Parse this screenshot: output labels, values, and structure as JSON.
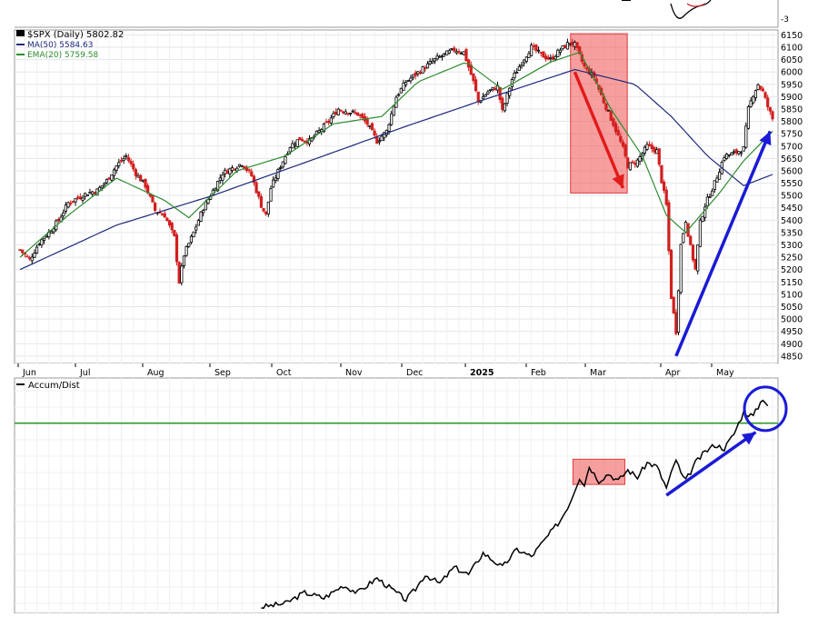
{
  "chart_data": [
    {
      "type": "candlestick",
      "legend": {
        "symbol_line": "$SPX (Daily) 5802.82",
        "ma_line": "MA(50) 5584.63",
        "ema_line": "EMA(20) 5759.58"
      },
      "y_ticks": [
        4850,
        4900,
        4950,
        5000,
        5050,
        5100,
        5150,
        5200,
        5250,
        5300,
        5350,
        5400,
        5450,
        5500,
        5550,
        5600,
        5650,
        5700,
        5750,
        5800,
        5850,
        5900,
        5950,
        6000,
        6050,
        6100,
        6150
      ],
      "x_labels": [
        "Jun",
        "Jul",
        "Aug",
        "Sep",
        "Oct",
        "Nov",
        "Dec",
        "2025",
        "Feb",
        "Mar",
        "Apr",
        "May"
      ],
      "grid": true,
      "price_points": [
        [
          0,
          5280
        ],
        [
          4,
          5240
        ],
        [
          8,
          5310
        ],
        [
          12,
          5350
        ],
        [
          16,
          5400
        ],
        [
          20,
          5470
        ],
        [
          24,
          5490
        ],
        [
          28,
          5510
        ],
        [
          32,
          5520
        ],
        [
          36,
          5560
        ],
        [
          40,
          5620
        ],
        [
          44,
          5660
        ],
        [
          48,
          5590
        ],
        [
          52,
          5540
        ],
        [
          56,
          5440
        ],
        [
          60,
          5420
        ],
        [
          64,
          5330
        ],
        [
          66,
          5150
        ],
        [
          68,
          5260
        ],
        [
          72,
          5350
        ],
        [
          76,
          5450
        ],
        [
          80,
          5520
        ],
        [
          84,
          5590
        ],
        [
          88,
          5610
        ],
        [
          92,
          5630
        ],
        [
          96,
          5580
        ],
        [
          100,
          5460
        ],
        [
          102,
          5420
        ],
        [
          104,
          5530
        ],
        [
          108,
          5620
        ],
        [
          112,
          5700
        ],
        [
          116,
          5730
        ],
        [
          120,
          5720
        ],
        [
          124,
          5760
        ],
        [
          128,
          5800
        ],
        [
          132,
          5850
        ],
        [
          136,
          5840
        ],
        [
          140,
          5830
        ],
        [
          144,
          5790
        ],
        [
          148,
          5720
        ],
        [
          152,
          5760
        ],
        [
          156,
          5900
        ],
        [
          160,
          5960
        ],
        [
          164,
          5990
        ],
        [
          168,
          6020
        ],
        [
          172,
          6050
        ],
        [
          176,
          6070
        ],
        [
          180,
          6090
        ],
        [
          184,
          6080
        ],
        [
          188,
          5960
        ],
        [
          190,
          5880
        ],
        [
          194,
          5920
        ],
        [
          198,
          5940
        ],
        [
          200,
          5840
        ],
        [
          204,
          5970
        ],
        [
          208,
          6040
        ],
        [
          212,
          6100
        ],
        [
          216,
          6070
        ],
        [
          220,
          6050
        ],
        [
          224,
          6090
        ],
        [
          228,
          6120
        ],
        [
          230,
          6110
        ],
        [
          234,
          6020
        ],
        [
          238,
          5980
        ],
        [
          242,
          5880
        ],
        [
          246,
          5790
        ],
        [
          250,
          5690
        ],
        [
          252,
          5620
        ],
        [
          256,
          5640
        ],
        [
          260,
          5700
        ],
        [
          264,
          5680
        ],
        [
          266,
          5560
        ],
        [
          268,
          5460
        ],
        [
          270,
          5090
        ],
        [
          272,
          4950
        ],
        [
          274,
          5300
        ],
        [
          276,
          5400
        ],
        [
          278,
          5290
        ],
        [
          280,
          5200
        ],
        [
          282,
          5390
        ],
        [
          284,
          5460
        ],
        [
          288,
          5550
        ],
        [
          292,
          5660
        ],
        [
          296,
          5670
        ],
        [
          300,
          5690
        ],
        [
          302,
          5850
        ],
        [
          304,
          5910
        ],
        [
          306,
          5950
        ],
        [
          308,
          5920
        ],
        [
          310,
          5860
        ],
        [
          312,
          5810
        ]
      ],
      "ma50_points": [
        [
          0,
          5200
        ],
        [
          40,
          5380
        ],
        [
          80,
          5500
        ],
        [
          120,
          5640
        ],
        [
          160,
          5780
        ],
        [
          190,
          5880
        ],
        [
          230,
          6010
        ],
        [
          255,
          5950
        ],
        [
          270,
          5820
        ],
        [
          285,
          5660
        ],
        [
          300,
          5540
        ],
        [
          312,
          5585
        ]
      ],
      "ema20_points": [
        [
          0,
          5250
        ],
        [
          20,
          5420
        ],
        [
          40,
          5570
        ],
        [
          60,
          5480
        ],
        [
          70,
          5410
        ],
        [
          90,
          5600
        ],
        [
          110,
          5660
        ],
        [
          130,
          5790
        ],
        [
          150,
          5820
        ],
        [
          165,
          5960
        ],
        [
          185,
          6040
        ],
        [
          200,
          5930
        ],
        [
          220,
          6040
        ],
        [
          232,
          6080
        ],
        [
          245,
          5850
        ],
        [
          258,
          5660
        ],
        [
          268,
          5420
        ],
        [
          276,
          5350
        ],
        [
          290,
          5510
        ],
        [
          300,
          5640
        ],
        [
          312,
          5760
        ]
      ],
      "highlight": {
        "from_index": 229,
        "to_index": 251,
        "y_top": 6155,
        "y_bottom": 5510
      },
      "red_arrow": {
        "from": [
          230,
          6000
        ],
        "to": [
          250,
          5530
        ]
      },
      "blue_arrow": {
        "from": [
          272,
          4850
        ],
        "to": [
          311,
          5760
        ]
      },
      "top_panel_strip": {
        "label": "-3"
      }
    },
    {
      "type": "line",
      "title": "Accum/Dist",
      "values_normalized": [
        [
          100,
          0.0
        ],
        [
          110,
          0.02
        ],
        [
          118,
          0.08
        ],
        [
          126,
          0.05
        ],
        [
          134,
          0.12
        ],
        [
          140,
          0.08
        ],
        [
          148,
          0.16
        ],
        [
          154,
          0.1
        ],
        [
          160,
          0.04
        ],
        [
          164,
          0.1
        ],
        [
          168,
          0.18
        ],
        [
          174,
          0.13
        ],
        [
          180,
          0.22
        ],
        [
          186,
          0.18
        ],
        [
          192,
          0.3
        ],
        [
          196,
          0.26
        ],
        [
          200,
          0.22
        ],
        [
          206,
          0.32
        ],
        [
          212,
          0.28
        ],
        [
          218,
          0.38
        ],
        [
          224,
          0.48
        ],
        [
          228,
          0.58
        ],
        [
          232,
          0.72
        ],
        [
          234,
          0.68
        ],
        [
          236,
          0.78
        ],
        [
          240,
          0.7
        ],
        [
          244,
          0.74
        ],
        [
          248,
          0.7
        ],
        [
          252,
          0.76
        ],
        [
          256,
          0.72
        ],
        [
          260,
          0.8
        ],
        [
          264,
          0.78
        ],
        [
          268,
          0.66
        ],
        [
          272,
          0.82
        ],
        [
          274,
          0.74
        ],
        [
          276,
          0.7
        ],
        [
          280,
          0.8
        ],
        [
          284,
          0.86
        ],
        [
          288,
          0.9
        ],
        [
          292,
          0.88
        ],
        [
          296,
          0.96
        ],
        [
          300,
          1.08
        ],
        [
          304,
          1.06
        ],
        [
          308,
          1.16
        ],
        [
          310,
          1.12
        ]
      ],
      "green_line_level": 1.02,
      "highlight": {
        "from_index": 230,
        "to_index": 250
      },
      "blue_arrow": {
        "from": [
          268,
          0.62
        ],
        "to": [
          305,
          0.97
        ]
      },
      "circle_at": [
        309,
        1.12
      ]
    }
  ]
}
